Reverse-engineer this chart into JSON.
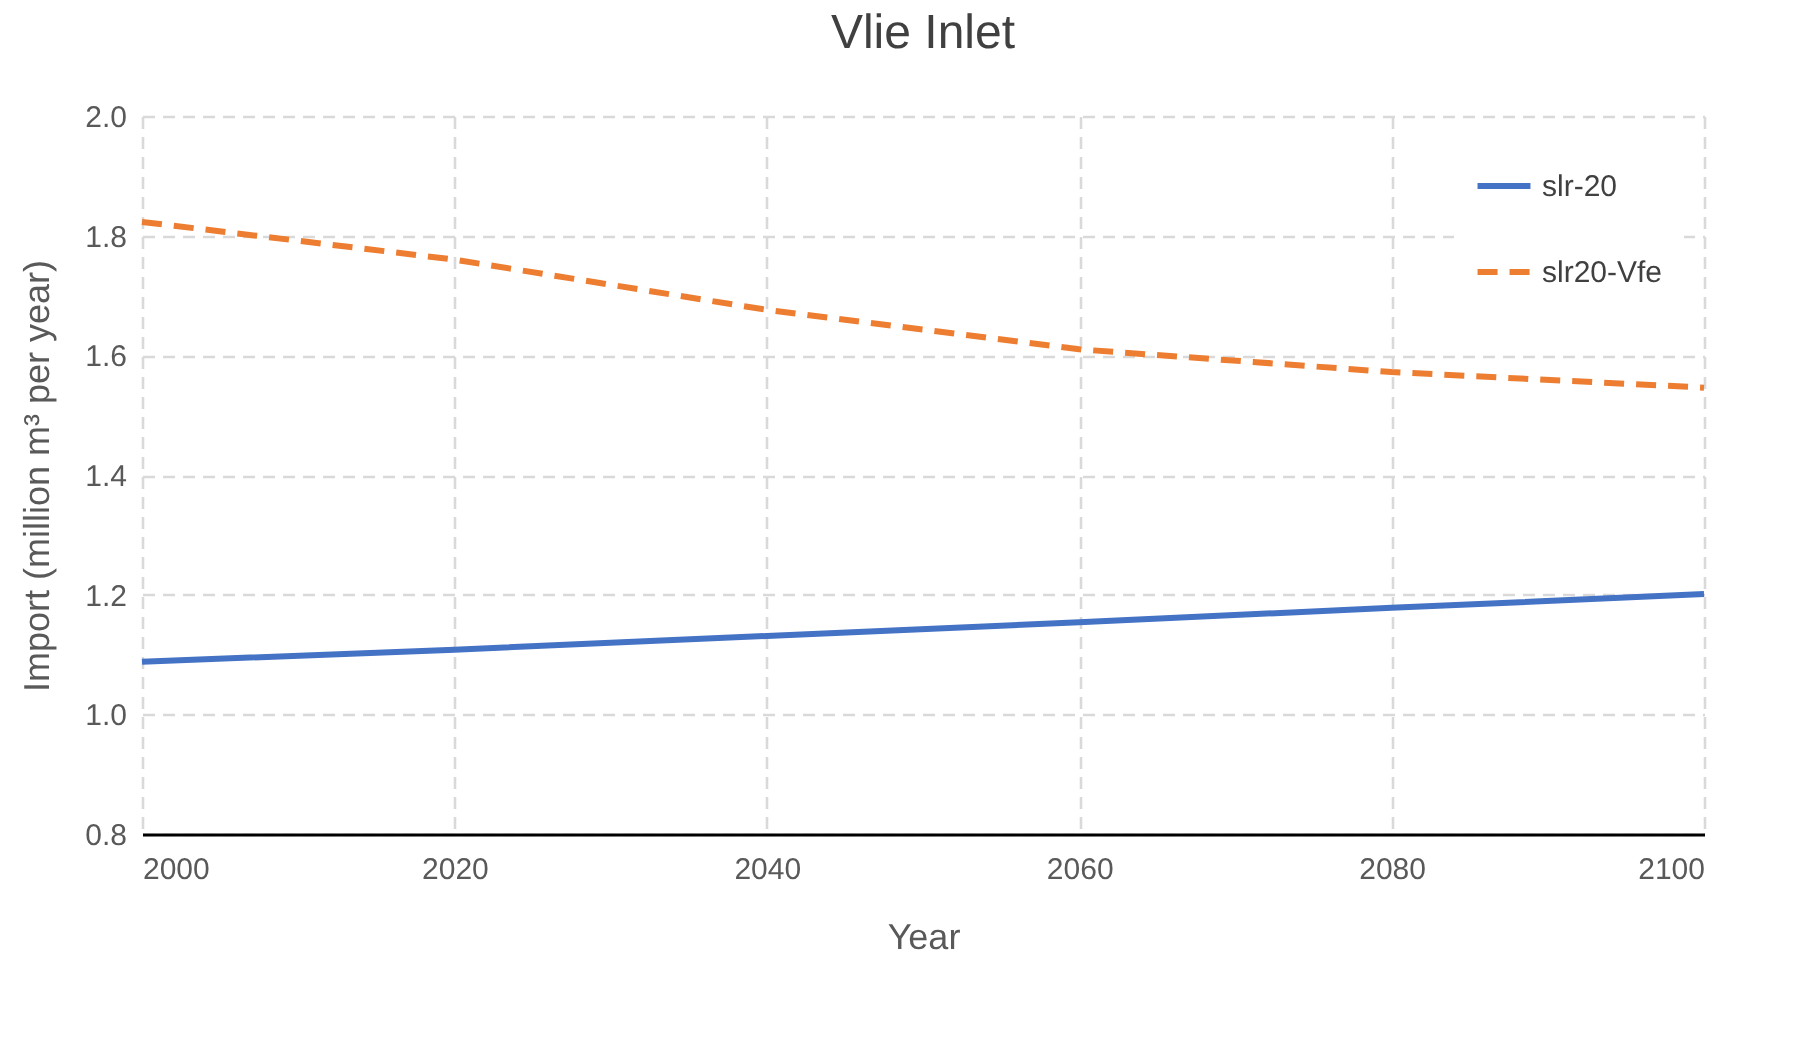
{
  "chart_data": {
    "type": "line",
    "title": "Vlie Inlet",
    "xlabel": "Year",
    "ylabel": "Import (million m³ per year)",
    "x": [
      2000,
      2020,
      2040,
      2060,
      2080,
      2100
    ],
    "series": [
      {
        "name": "slr-20",
        "color": "#4472c4",
        "line_style": "solid",
        "values": [
          1.088,
          1.108,
          1.131,
          1.154,
          1.178,
          1.201
        ]
      },
      {
        "name": "slr20-Vfe",
        "color": "#ed7d31",
        "line_style": "dashed",
        "values": [
          1.823,
          1.76,
          1.676,
          1.61,
          1.572,
          1.546
        ]
      }
    ],
    "xlim": [
      2000,
      2100
    ],
    "xticks": [
      2000,
      2020,
      2040,
      2060,
      2080,
      2100
    ],
    "ylim": [
      0.8,
      2.0
    ],
    "yticks": [
      0.8,
      {
        "value": 1,
        "label": "1.0"
      },
      1.2,
      1.4,
      1.6,
      1.8,
      {
        "value": 2,
        "label": "2.0"
      }
    ],
    "grid": true,
    "legend": "top right",
    "marker": "none"
  }
}
